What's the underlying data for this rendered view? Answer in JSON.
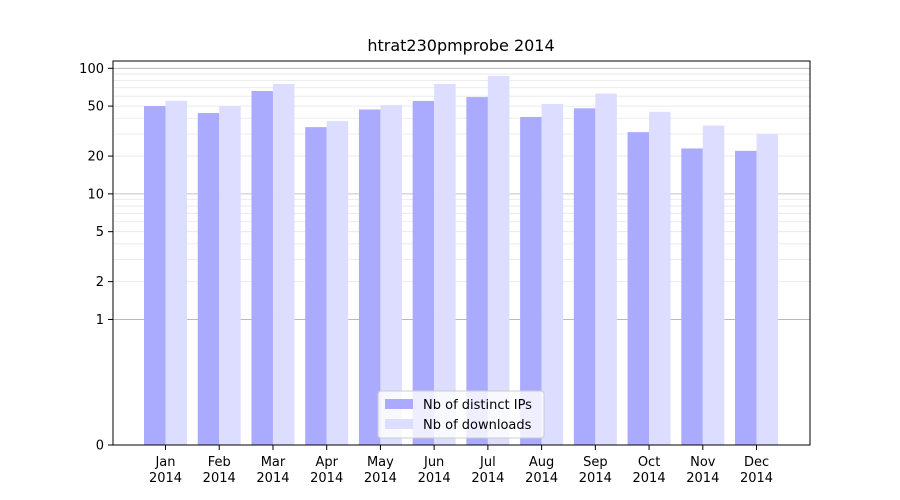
{
  "chart_data": {
    "type": "bar",
    "title": "htrat230pmprobe 2014",
    "xlabel": "",
    "ylabel": "",
    "yscale": "symlog",
    "ylim": [
      0,
      100
    ],
    "y_ticks": [
      0,
      1,
      2,
      5,
      10,
      20,
      50,
      100
    ],
    "categories": [
      "Jan\n2014",
      "Feb\n2014",
      "Mar\n2014",
      "Apr\n2014",
      "May\n2014",
      "Jun\n2014",
      "Jul\n2014",
      "Aug\n2014",
      "Sep\n2014",
      "Oct\n2014",
      "Nov\n2014",
      "Dec\n2014"
    ],
    "series": [
      {
        "name": "Nb of distinct IPs",
        "color": "#aaaaff",
        "values": [
          50,
          44,
          66,
          34,
          47,
          55,
          59,
          41,
          48,
          31,
          23,
          22
        ]
      },
      {
        "name": "Nb of downloads",
        "color": "#ddddff",
        "values": [
          55,
          50,
          75,
          38,
          51,
          75,
          87,
          52,
          63,
          45,
          35,
          30
        ]
      }
    ],
    "grid": true,
    "legend_position": "bottom-center"
  }
}
